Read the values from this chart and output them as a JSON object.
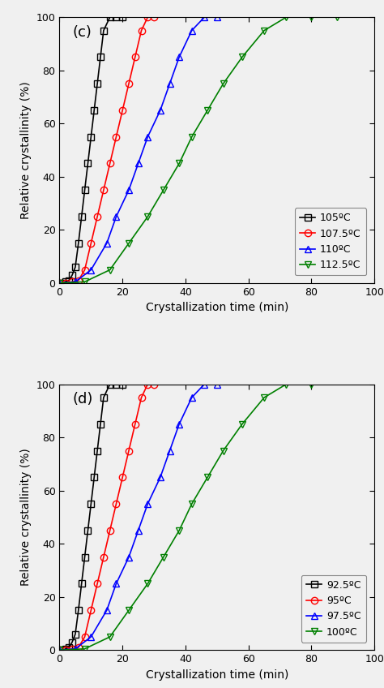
{
  "background": "#f0f0f0",
  "ylabel": "Relative crystallinity (%)",
  "xlabel": "Crystallization time (min)",
  "plot_c": {
    "label": "(c)",
    "series": [
      {
        "key": "105",
        "label": "105ºC",
        "color": "black",
        "marker": "s",
        "x": [
          0,
          1,
          2,
          3,
          4,
          5,
          6,
          7,
          8,
          9,
          10,
          11,
          12,
          13,
          14,
          16,
          18,
          20
        ],
        "y": [
          0,
          0,
          0.5,
          1,
          3,
          6,
          15,
          25,
          35,
          45,
          55,
          65,
          75,
          85,
          95,
          100,
          100,
          100
        ]
      },
      {
        "key": "107.5",
        "label": "107.5ºC",
        "color": "red",
        "marker": "o",
        "x": [
          0,
          2,
          4,
          6,
          8,
          10,
          12,
          14,
          16,
          18,
          20,
          22,
          24,
          26,
          28,
          30
        ],
        "y": [
          0,
          0,
          0.5,
          1,
          5,
          15,
          25,
          35,
          45,
          55,
          65,
          75,
          85,
          95,
          100,
          100
        ]
      },
      {
        "key": "110",
        "label": "110ºC",
        "color": "blue",
        "marker": "^",
        "x": [
          0,
          5,
          10,
          15,
          18,
          22,
          25,
          28,
          32,
          35,
          38,
          42,
          46,
          50
        ],
        "y": [
          0,
          0.5,
          5,
          15,
          25,
          35,
          45,
          55,
          65,
          75,
          85,
          95,
          100,
          100
        ]
      },
      {
        "key": "112.5",
        "label": "112.5ºC",
        "color": "green",
        "marker": "v",
        "x": [
          0,
          8,
          16,
          22,
          28,
          33,
          38,
          42,
          47,
          52,
          58,
          65,
          72,
          80,
          88
        ],
        "y": [
          0,
          0.5,
          5,
          15,
          25,
          35,
          45,
          55,
          65,
          75,
          85,
          95,
          100,
          100,
          100
        ]
      }
    ]
  },
  "plot_d": {
    "label": "(d)",
    "series": [
      {
        "key": "92.5",
        "label": "92.5ºC",
        "color": "black",
        "marker": "s",
        "x": [
          0,
          1,
          2,
          3,
          4,
          5,
          6,
          7,
          8,
          9,
          10,
          11,
          12,
          13,
          14,
          16,
          18,
          20
        ],
        "y": [
          0,
          0,
          0.5,
          1,
          3,
          6,
          15,
          25,
          35,
          45,
          55,
          65,
          75,
          85,
          95,
          100,
          100,
          100
        ]
      },
      {
        "key": "95",
        "label": "95ºC",
        "color": "red",
        "marker": "o",
        "x": [
          0,
          2,
          4,
          6,
          8,
          10,
          12,
          14,
          16,
          18,
          20,
          22,
          24,
          26,
          28,
          30
        ],
        "y": [
          0,
          0,
          0.5,
          1,
          5,
          15,
          25,
          35,
          45,
          55,
          65,
          75,
          85,
          95,
          100,
          100
        ]
      },
      {
        "key": "97.5",
        "label": "97.5ºC",
        "color": "blue",
        "marker": "^",
        "x": [
          0,
          5,
          10,
          15,
          18,
          22,
          25,
          28,
          32,
          35,
          38,
          42,
          46,
          50
        ],
        "y": [
          0,
          0.5,
          5,
          15,
          25,
          35,
          45,
          55,
          65,
          75,
          85,
          95,
          100,
          100
        ]
      },
      {
        "key": "100",
        "label": "100ºC",
        "color": "green",
        "marker": "v",
        "x": [
          0,
          8,
          16,
          22,
          28,
          33,
          38,
          42,
          47,
          52,
          58,
          65,
          72,
          80
        ],
        "y": [
          0,
          0.5,
          5,
          15,
          25,
          35,
          45,
          55,
          65,
          75,
          85,
          95,
          100,
          100
        ]
      }
    ]
  }
}
